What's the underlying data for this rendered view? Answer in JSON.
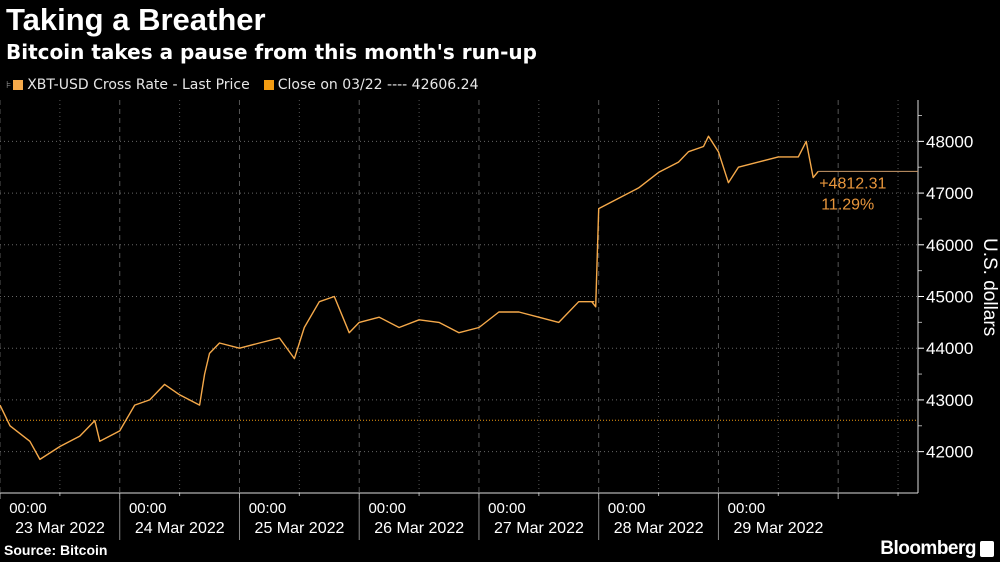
{
  "title": "Taking a Breather",
  "subtitle": "Bitcoin takes a pause from this month's run-up",
  "source": "Source: Bitcoin",
  "brand": "Bloomberg",
  "colors": {
    "line": "#f5a94a",
    "close": "#f39c12",
    "annotation": "#e8963c"
  },
  "chart_data": {
    "type": "line",
    "title": "Taking a Breather",
    "ylabel": "U.S. dollars",
    "ylim": [
      41200,
      48800
    ],
    "yticks": [
      42000,
      43000,
      44000,
      45000,
      46000,
      47000,
      48000
    ],
    "x_unit": "hours since 23 Mar 2022 00:00 (approx)",
    "xlim": [
      0,
      184
    ],
    "xticks": [
      {
        "time": "00:00",
        "date": "23 Mar 2022"
      },
      {
        "time": "00:00",
        "date": "24 Mar 2022"
      },
      {
        "time": "00:00",
        "date": "25 Mar 2022"
      },
      {
        "time": "00:00",
        "date": "26 Mar 2022"
      },
      {
        "time": "00:00",
        "date": "27 Mar 2022"
      },
      {
        "time": "00:00",
        "date": "28 Mar 2022"
      },
      {
        "time": "00:00",
        "date": "29 Mar 2022"
      }
    ],
    "legend": [
      {
        "label": "XBT-USD Cross Rate - Last Price"
      },
      {
        "label": "Close on 03/22 ---- 42606.24"
      }
    ],
    "close_value": 42606.24,
    "annotation": {
      "change": "+4812.31",
      "percent": "11.29%",
      "last": 47418.55
    },
    "series": [
      {
        "name": "XBT-USD Cross Rate - Last Price",
        "x": [
          0,
          2,
          6,
          8,
          12,
          16,
          19,
          20,
          24,
          27,
          30,
          33,
          36,
          40,
          41,
          42,
          44,
          48,
          52,
          56,
          59,
          61,
          64,
          67,
          70,
          72,
          76,
          80,
          84,
          88,
          92,
          96,
          100,
          104,
          108,
          112,
          116,
          119,
          118.6,
          119.4,
          120,
          124,
          128,
          132,
          136,
          138,
          141,
          142,
          144,
          146,
          148,
          152,
          156,
          158,
          160,
          161.6,
          163,
          164
        ],
        "y": [
          42900,
          42500,
          42200,
          41850,
          42100,
          42300,
          42600,
          42200,
          42400,
          42900,
          43000,
          43300,
          43100,
          42900,
          43500,
          43900,
          44100,
          44000,
          44100,
          44200,
          43800,
          44400,
          44900,
          45000,
          44300,
          44500,
          44600,
          44400,
          44550,
          44500,
          44300,
          44400,
          44700,
          44700,
          44600,
          44500,
          44900,
          44900,
          44900,
          44800,
          46700,
          46900,
          47100,
          47400,
          47600,
          47800,
          47900,
          48100,
          47800,
          47200,
          47500,
          47600,
          47700,
          47700,
          47700,
          48000,
          47300,
          47418.55
        ]
      }
    ]
  }
}
